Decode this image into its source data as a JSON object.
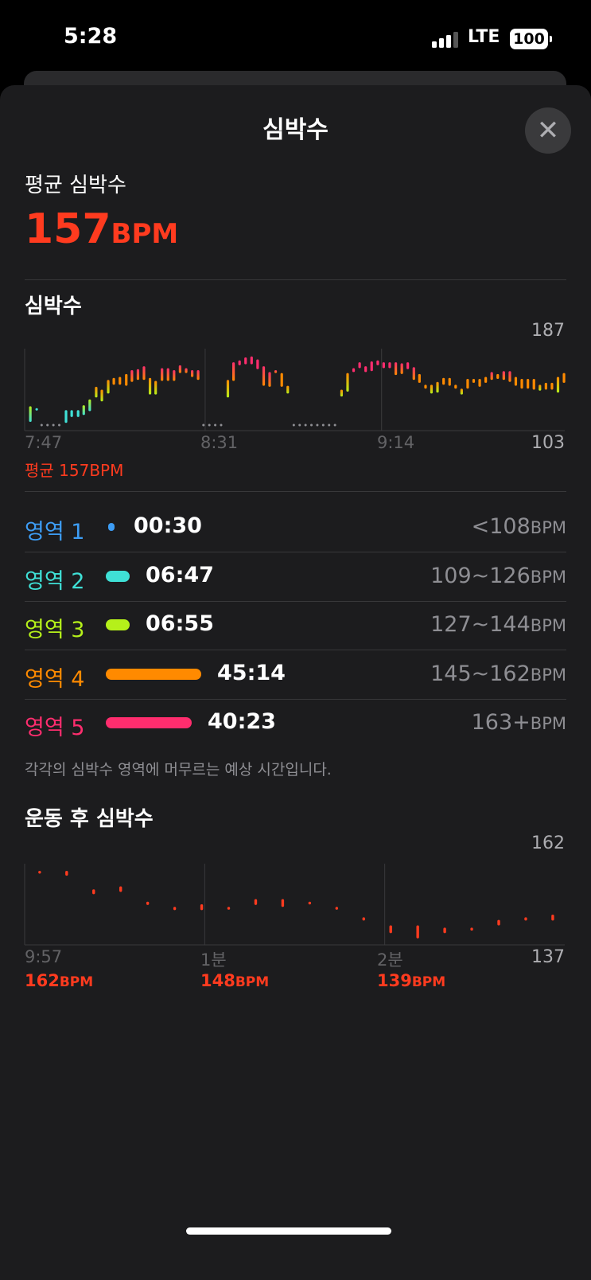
{
  "status": {
    "time": "5:28",
    "network": "LTE",
    "battery": "100",
    "signal_bars": 3,
    "signal_max": 4
  },
  "sheet": {
    "title": "심박수",
    "close_icon": "close-icon"
  },
  "average": {
    "label": "평균 심박수",
    "value": "157",
    "unit": "BPM"
  },
  "hr_section": {
    "title": "심박수",
    "avg_label": "평균 157BPM"
  },
  "zones": [
    {
      "label": "영역 1",
      "time": "00:30",
      "range": "<108",
      "unit": "BPM",
      "color": "#3d9df5",
      "fraction": 0.006
    },
    {
      "label": "영역 2",
      "time": "06:47",
      "range": "109~126",
      "unit": "BPM",
      "color": "#3fe0d6",
      "fraction": 0.068
    },
    {
      "label": "영역 3",
      "time": "06:55",
      "range": "127~144",
      "unit": "BPM",
      "color": "#b5f01a",
      "fraction": 0.069
    },
    {
      "label": "영역 4",
      "time": "45:14",
      "range": "145~162",
      "unit": "BPM",
      "color": "#ff8a00",
      "fraction": 0.45
    },
    {
      "label": "영역 5",
      "time": "40:23",
      "range": "163+",
      "unit": "BPM",
      "color": "#ff2d6e",
      "fraction": 0.402
    }
  ],
  "zone_note": "각각의 심박수 영역에 머무르는 예상 시간입니다.",
  "recovery": {
    "title": "운동 후 심박수",
    "marks": [
      {
        "label": "9:57",
        "value": "162",
        "unit": "BPM"
      },
      {
        "label": "1분",
        "value": "148",
        "unit": "BPM"
      },
      {
        "label": "2분",
        "value": "139",
        "unit": "BPM"
      }
    ]
  },
  "chart_data": [
    {
      "type": "bar",
      "subtype": "range",
      "title": "심박수",
      "ylim": [
        103,
        187
      ],
      "ytick_labels": [
        "187",
        "103"
      ],
      "xlim": [
        "7:47:00",
        "9:58:39"
      ],
      "xtick_labels": [
        "7:47",
        "8:31",
        "9:14"
      ],
      "xticks": [
        "7:47:00",
        "8:31:00",
        "9:14:00"
      ],
      "grid": "vertical",
      "zone_thresholds": [
        108,
        126,
        144,
        162
      ],
      "gaps": [
        [
          "7:51:08",
          "7:55:43"
        ],
        [
          "8:30:35",
          "8:35:10"
        ],
        [
          "8:52:36",
          "9:02:41"
        ]
      ],
      "bars": [
        [
          "7:48:23",
          112,
          128
        ],
        [
          "7:49:56",
          125,
          126
        ],
        [
          "7:57:05",
          111,
          124
        ],
        [
          "7:58:28",
          117,
          124
        ],
        [
          "8:00:02",
          117,
          124
        ],
        [
          "8:01:24",
          119,
          129
        ],
        [
          "8:02:52",
          123,
          135
        ],
        [
          "8:04:26",
          137,
          148
        ],
        [
          "8:05:49",
          133,
          145
        ],
        [
          "8:07:22",
          141,
          155
        ],
        [
          "8:08:44",
          150,
          157
        ],
        [
          "8:10:13",
          150,
          158
        ],
        [
          "8:11:46",
          149,
          161
        ],
        [
          "8:13:09",
          153,
          165
        ],
        [
          "8:14:37",
          155,
          166
        ],
        [
          "8:16:05",
          155,
          169
        ],
        [
          "8:17:33",
          140,
          157
        ],
        [
          "8:18:56",
          140,
          154
        ],
        [
          "8:20:29",
          154,
          167
        ],
        [
          "8:21:57",
          154,
          167
        ],
        [
          "8:23:25",
          154,
          165
        ],
        [
          "8:24:53",
          162,
          170
        ],
        [
          "8:26:22",
          162,
          167
        ],
        [
          "8:27:50",
          158,
          165
        ],
        [
          "8:29:17",
          155,
          165
        ],
        [
          "8:36:32",
          137,
          155
        ],
        [
          "8:37:55",
          154,
          173
        ],
        [
          "8:39:23",
          170,
          175
        ],
        [
          "8:40:51",
          171,
          178
        ],
        [
          "8:42:19",
          171,
          179
        ],
        [
          "8:43:47",
          166,
          176
        ],
        [
          "8:45:16",
          149,
          169
        ],
        [
          "8:46:43",
          148,
          163
        ],
        [
          "8:48:11",
          162,
          165
        ],
        [
          "8:49:40",
          148,
          162
        ],
        [
          "8:51:08",
          141,
          149
        ],
        [
          "9:04:15",
          138,
          145
        ],
        [
          "9:05:43",
          143,
          162
        ],
        [
          "9:07:11",
          163,
          167
        ],
        [
          "9:08:39",
          167,
          173
        ],
        [
          "9:10:07",
          163,
          169
        ],
        [
          "9:11:35",
          164,
          174
        ],
        [
          "9:13:04",
          170,
          175
        ],
        [
          "9:14:31",
          167,
          173
        ],
        [
          "9:15:59",
          167,
          173
        ],
        [
          "9:17:28",
          160,
          173
        ],
        [
          "9:18:56",
          161,
          172
        ],
        [
          "9:20:23",
          166,
          173
        ],
        [
          "9:21:52",
          155,
          168
        ],
        [
          "9:23:14",
          152,
          161
        ],
        [
          "9:24:43",
          146,
          150
        ],
        [
          "9:26:10",
          141,
          150
        ],
        [
          "9:27:38",
          142,
          153
        ],
        [
          "9:29:07",
          150,
          157
        ],
        [
          "9:30:35",
          149,
          157
        ],
        [
          "9:32:03",
          146,
          150
        ],
        [
          "9:33:31",
          140,
          146
        ],
        [
          "9:34:59",
          146,
          156
        ],
        [
          "9:36:27",
          152,
          156
        ],
        [
          "9:37:55",
          148,
          156
        ],
        [
          "9:39:23",
          152,
          158
        ],
        [
          "9:40:51",
          155,
          163
        ],
        [
          "9:42:19",
          156,
          161
        ],
        [
          "9:43:47",
          155,
          164
        ],
        [
          "9:45:16",
          153,
          164
        ],
        [
          "9:46:43",
          149,
          158
        ],
        [
          "9:48:11",
          146,
          156
        ],
        [
          "9:49:40",
          146,
          156
        ],
        [
          "9:51:08",
          145,
          156
        ],
        [
          "9:52:36",
          144,
          150
        ],
        [
          "9:54:04",
          145,
          152
        ],
        [
          "9:55:32",
          145,
          152
        ],
        [
          "9:57:00",
          142,
          158
        ],
        [
          "9:58:28",
          152,
          162
        ]
      ]
    },
    {
      "type": "bar",
      "subtype": "range",
      "title": "운동 후 심박수",
      "color": "#ff3b1f",
      "ylim": [
        137,
        162
      ],
      "ytick_labels": [
        "162",
        "137"
      ],
      "x_unit": "seconds after 9:57",
      "xlim": [
        0,
        180
      ],
      "xticks": [
        0,
        60,
        120
      ],
      "xtick_labels": [
        "9:57",
        "1분",
        "2분"
      ],
      "grid": "vertical",
      "points": [
        [
          5,
          159.1,
          159.8
        ],
        [
          14,
          158.3,
          159.8
        ],
        [
          23,
          152.6,
          154.1
        ],
        [
          32,
          153.3,
          155
        ],
        [
          41,
          149.3,
          150.3
        ],
        [
          50,
          147.7,
          148.7
        ],
        [
          59,
          147.7,
          149.5
        ],
        [
          68,
          147.9,
          148.7
        ],
        [
          77,
          149.3,
          151.1
        ],
        [
          86,
          148.7,
          151.1
        ],
        [
          95,
          149.5,
          150.3
        ],
        [
          104,
          147.9,
          148.7
        ],
        [
          113,
          144.5,
          145.5
        ],
        [
          122,
          140.6,
          143
        ],
        [
          131,
          139,
          143
        ],
        [
          140,
          140.6,
          142.3
        ],
        [
          149,
          141.4,
          142.3
        ],
        [
          158,
          143,
          144.7
        ],
        [
          167,
          144.5,
          145.5
        ],
        [
          176,
          144.5,
          146.3
        ]
      ]
    }
  ]
}
